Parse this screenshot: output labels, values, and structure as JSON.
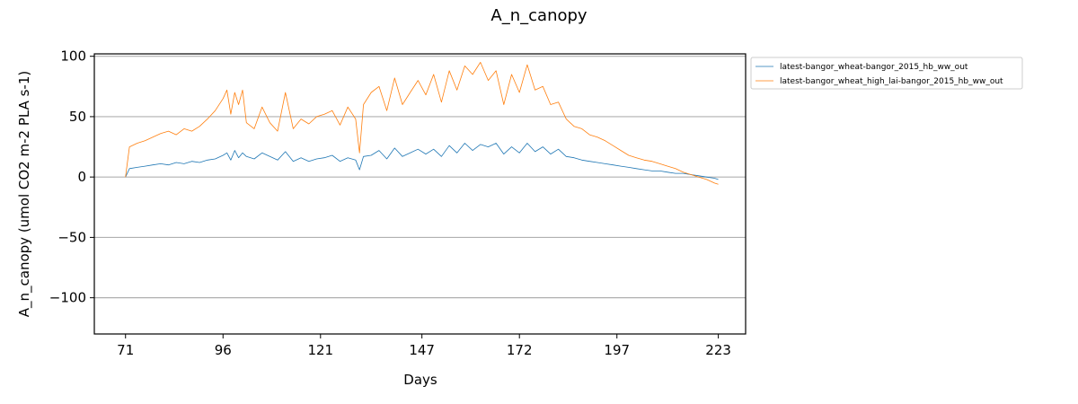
{
  "chart_data": {
    "type": "line",
    "title": "A_n_canopy",
    "xlabel": "Days",
    "ylabel": "A_n_canopy (umol CO2 m-2 PLA s-1)",
    "xlim": [
      63,
      230
    ],
    "ylim": [
      -130,
      102
    ],
    "x_ticks": [
      "71",
      "96",
      "121",
      "147",
      "172",
      "197",
      "223"
    ],
    "y_ticks": [
      "100",
      "50",
      "0",
      "−50",
      "−100"
    ],
    "grid": "horizontal",
    "legend_position": "outside-top-right",
    "series": [
      {
        "name": "latest-bangor_wheat-bangor_2015_hb_ww_out",
        "color": "#1f77b4",
        "x": [
          71,
          72,
          74,
          76,
          78,
          80,
          82,
          84,
          86,
          88,
          90,
          92,
          94,
          96,
          97,
          98,
          99,
          100,
          101,
          102,
          104,
          106,
          108,
          110,
          112,
          114,
          116,
          118,
          120,
          122,
          124,
          126,
          128,
          130,
          131,
          132,
          134,
          136,
          138,
          140,
          142,
          144,
          146,
          148,
          150,
          152,
          154,
          156,
          158,
          160,
          162,
          164,
          166,
          168,
          170,
          172,
          174,
          176,
          178,
          180,
          182,
          184,
          186,
          188,
          190,
          192,
          194,
          196,
          198,
          200,
          202,
          204,
          206,
          208,
          210,
          212,
          214,
          216,
          218,
          220,
          222,
          223
        ],
        "y": [
          0,
          7,
          8,
          9,
          10,
          11,
          10,
          12,
          11,
          13,
          12,
          14,
          15,
          18,
          20,
          14,
          22,
          16,
          20,
          17,
          15,
          20,
          17,
          14,
          21,
          13,
          16,
          13,
          15,
          16,
          18,
          13,
          16,
          14,
          6,
          17,
          18,
          22,
          15,
          24,
          17,
          20,
          23,
          19,
          23,
          17,
          26,
          20,
          28,
          22,
          27,
          25,
          28,
          19,
          25,
          20,
          28,
          21,
          25,
          19,
          23,
          17,
          16,
          14,
          13,
          12,
          11,
          10,
          9,
          8,
          7,
          6,
          5,
          5,
          4,
          3,
          3,
          2,
          1,
          0,
          -1,
          -2
        ]
      },
      {
        "name": "latest-bangor_wheat_high_lai-bangor_2015_hb_ww_out",
        "color": "#ff7f0e",
        "x": [
          71,
          72,
          74,
          76,
          78,
          80,
          82,
          84,
          86,
          88,
          90,
          92,
          94,
          96,
          97,
          98,
          99,
          100,
          101,
          102,
          104,
          106,
          108,
          110,
          112,
          114,
          116,
          118,
          120,
          122,
          124,
          126,
          128,
          130,
          131,
          132,
          134,
          136,
          138,
          140,
          142,
          144,
          146,
          148,
          150,
          152,
          154,
          156,
          158,
          160,
          162,
          164,
          166,
          168,
          170,
          172,
          174,
          176,
          178,
          180,
          182,
          184,
          186,
          188,
          190,
          192,
          194,
          196,
          198,
          200,
          202,
          204,
          206,
          208,
          210,
          212,
          214,
          216,
          218,
          220,
          222,
          223
        ],
        "y": [
          0,
          25,
          28,
          30,
          33,
          36,
          38,
          35,
          40,
          38,
          42,
          48,
          55,
          65,
          72,
          52,
          70,
          60,
          72,
          45,
          40,
          58,
          45,
          38,
          70,
          40,
          48,
          44,
          50,
          52,
          55,
          43,
          58,
          48,
          20,
          60,
          70,
          75,
          55,
          82,
          60,
          70,
          80,
          68,
          85,
          62,
          88,
          72,
          92,
          85,
          95,
          80,
          88,
          60,
          85,
          70,
          93,
          72,
          75,
          60,
          62,
          48,
          42,
          40,
          35,
          33,
          30,
          26,
          22,
          18,
          16,
          14,
          13,
          11,
          9,
          7,
          4,
          2,
          0,
          -2,
          -5,
          -6
        ]
      }
    ]
  }
}
